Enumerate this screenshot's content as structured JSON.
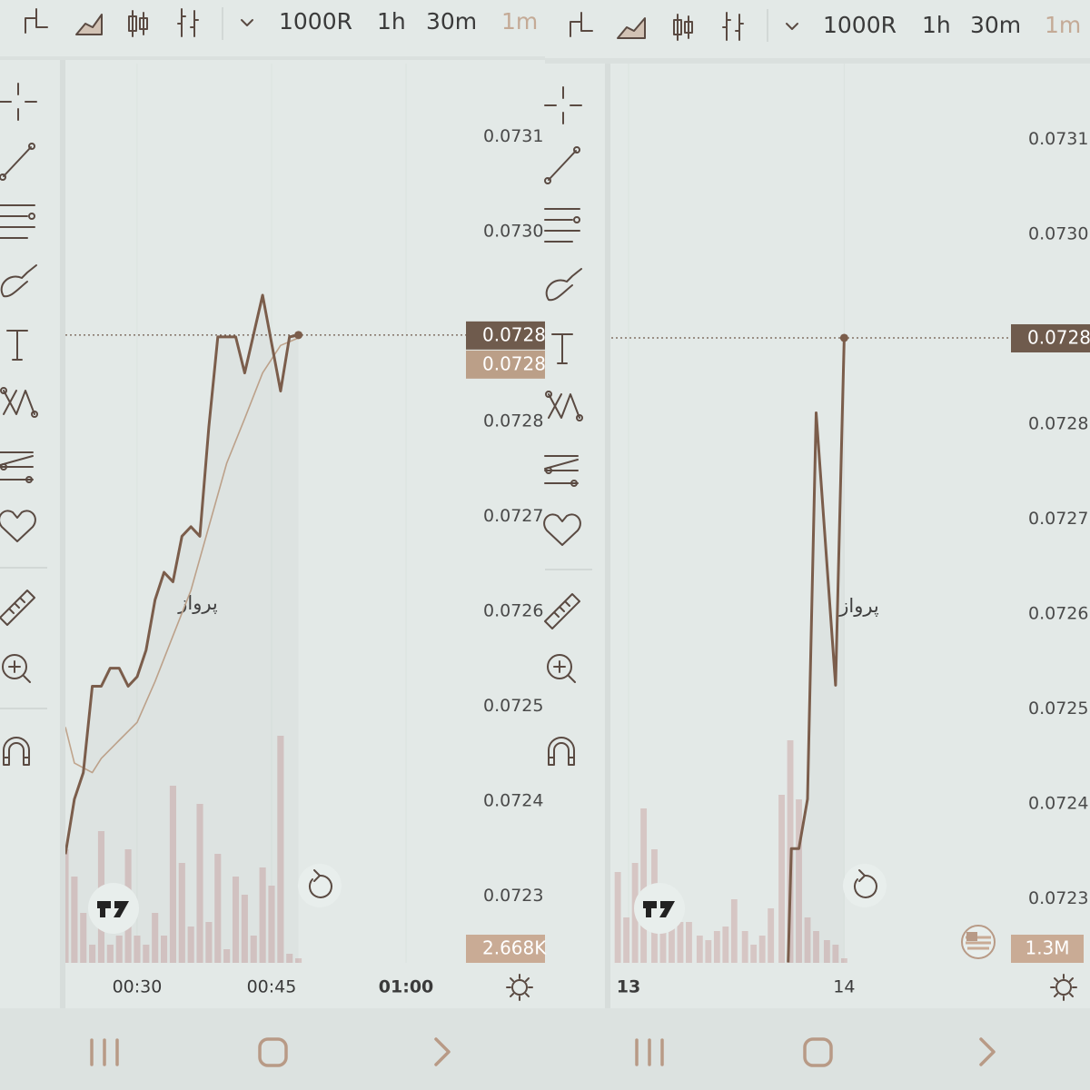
{
  "toolbars": [
    {
      "interval": "1000R",
      "timeframes": [
        "1h",
        "30m",
        "1m"
      ]
    },
    {
      "interval": "1000R",
      "timeframes": [
        "1h",
        "30m",
        "1m"
      ]
    }
  ],
  "chart_data": [
    {
      "type": "line",
      "watermark": "پرواز",
      "xlim": [
        22,
        75.5
      ],
      "xticks": [
        {
          "value": 30,
          "label": "00:30"
        },
        {
          "value": 45,
          "label": "00:45"
        },
        {
          "value": 60,
          "label": "01:00"
        }
      ],
      "ylim": [
        0.07222,
        0.073177
      ],
      "yticks": [
        0.0731,
        {
          "value": 0.073,
          "label": "0.0730"
        },
        0.0728,
        0.0727,
        0.0726,
        0.0725,
        0.0724,
        0.0723
      ],
      "series": [
        {
          "color": "#7b5d4b",
          "x": [
            22,
            23,
            24,
            25,
            26,
            27,
            28,
            29,
            30,
            31,
            32,
            33,
            34,
            35,
            36,
            37,
            38,
            39,
            41,
            42,
            44,
            46,
            47,
            48
          ],
          "values": [
            0.072344,
            0.072402,
            0.07243,
            0.072521,
            0.072521,
            0.07254,
            0.07254,
            0.072521,
            0.072531,
            0.072559,
            0.072612,
            0.072641,
            0.072631,
            0.072679,
            0.072689,
            0.072679,
            0.072794,
            0.072889,
            0.072889,
            0.072851,
            0.072933,
            0.072832,
            0.072889,
            0.072891
          ]
        },
        {
          "color": "#c0a48c",
          "x": [
            22,
            23,
            25,
            26,
            28,
            30,
            32,
            34,
            36,
            38,
            40,
            42,
            44,
            46,
            48
          ],
          "values": [
            0.072478,
            0.07244,
            0.07243,
            0.072445,
            0.072464,
            0.072483,
            0.072526,
            0.072574,
            0.072622,
            0.072689,
            0.072756,
            0.072803,
            0.072851,
            0.07288,
            0.072888
          ]
        }
      ],
      "price_labels": [
        "0.0728",
        "0.0728"
      ],
      "volume": {
        "color": "#d6c6c4",
        "vlim": [
          0,
          600
        ],
        "x": [
          22,
          23,
          24,
          25,
          26,
          27,
          28,
          29,
          30,
          31,
          32,
          33,
          34,
          35,
          36,
          37,
          38,
          39,
          40,
          41,
          42,
          43,
          44,
          45,
          46,
          47,
          48
        ],
        "values": [
          125,
          95,
          55,
          20,
          145,
          20,
          30,
          125,
          30,
          20,
          55,
          30,
          195,
          110,
          40,
          175,
          45,
          120,
          15,
          95,
          75,
          30,
          105,
          85,
          250,
          10,
          5
        ]
      },
      "volume_label": "2.668K"
    },
    {
      "type": "line",
      "watermark": "پرواز",
      "xlim": [
        12.92,
        15.14
      ],
      "xticks": [
        13,
        14
      ],
      "ylim": [
        0.072223,
        0.07318
      ],
      "yticks": [
        0.0731,
        {
          "value": 0.073,
          "label": "0.0730"
        },
        0.0728,
        0.0727,
        0.0726,
        0.0725,
        0.0724,
        0.0723
      ],
      "series": [
        {
          "color": "#7b5d4b",
          "x": [
            13.74,
            13.755,
            13.79,
            13.83,
            13.87,
            13.96,
            14.0
          ],
          "values": [
            0.072233,
            0.072353,
            0.072353,
            0.072405,
            0.072812,
            0.072525,
            0.072891
          ]
        }
      ],
      "price_labels": [
        "0.0728"
      ],
      "volume": {
        "color": "#d6c6c4",
        "vlim": [
          0,
          600
        ],
        "x": [
          12.95,
          12.99,
          13.03,
          13.07,
          13.12,
          13.16,
          13.2,
          13.24,
          13.28,
          13.33,
          13.37,
          13.41,
          13.45,
          13.49,
          13.54,
          13.58,
          13.62,
          13.66,
          13.71,
          13.75,
          13.79,
          13.83,
          13.87,
          13.92,
          13.96,
          14.0
        ],
        "values": [
          100,
          50,
          110,
          170,
          125,
          40,
          55,
          45,
          45,
          30,
          25,
          35,
          40,
          70,
          35,
          20,
          30,
          60,
          185,
          245,
          180,
          50,
          35,
          25,
          20,
          5
        ]
      },
      "volume_label": "1.3M"
    }
  ]
}
